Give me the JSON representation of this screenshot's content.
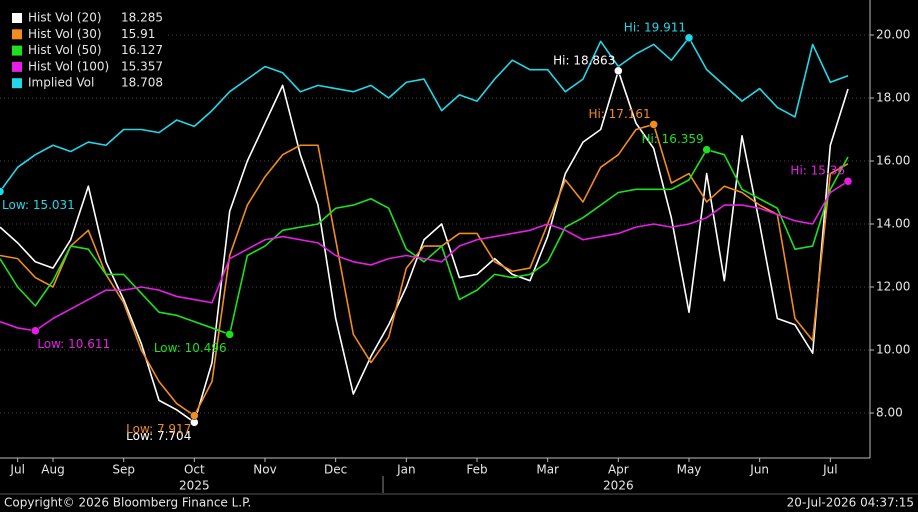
{
  "chart_data": {
    "type": "line",
    "categories": [
      null,
      "Jul",
      null,
      "Aug",
      null,
      null,
      null,
      "Sep",
      null,
      null,
      null,
      "Oct",
      null,
      null,
      null,
      "Nov",
      null,
      null,
      null,
      "Dec",
      null,
      null,
      null,
      "Jan",
      null,
      null,
      null,
      "Feb",
      null,
      null,
      null,
      "Mar",
      null,
      null,
      null,
      "Apr",
      null,
      null,
      null,
      "May",
      null,
      null,
      null,
      "Jun",
      null,
      null,
      null,
      "Jul",
      null
    ],
    "year_labels": [
      "2025",
      "2026"
    ],
    "ylim": [
      6.571,
      21.111
    ],
    "yticks": [
      {
        "value": 8,
        "label": "8.00"
      },
      {
        "value": 10,
        "label": "10.00"
      },
      {
        "value": 12,
        "label": "12.00"
      },
      {
        "value": 14,
        "label": "14.00"
      },
      {
        "value": 16,
        "label": "16.00"
      },
      {
        "value": 18,
        "label": "18.00"
      },
      {
        "value": 20,
        "label": "20.00"
      }
    ],
    "grid": true,
    "legend": "top-left",
    "series": [
      {
        "name": "Hist Vol (20)",
        "color": "#ffffff",
        "last": 18.285,
        "hi": {
          "value": 18.863,
          "label": "Hi: 18.863"
        },
        "low": {
          "value": 7.704,
          "label": "Low: 7.704"
        },
        "values": [
          13.9,
          13.4,
          12.8,
          12.6,
          13.5,
          15.2,
          12.8,
          11.6,
          10.2,
          8.4,
          8.1,
          7.704,
          9.6,
          14.4,
          16.0,
          17.2,
          18.4,
          16.2,
          14.6,
          11.0,
          8.6,
          9.8,
          10.8,
          12.0,
          13.5,
          14.0,
          12.3,
          12.4,
          12.9,
          12.4,
          12.2,
          13.6,
          15.6,
          16.6,
          17.0,
          18.863,
          17.2,
          16.4,
          14.2,
          11.2,
          15.6,
          12.2,
          16.8,
          14.0,
          11.0,
          10.8,
          9.9,
          16.5,
          18.285
        ]
      },
      {
        "name": "Hist Vol (30)",
        "color": "#f28c1e",
        "last": 15.91,
        "hi": {
          "value": 17.161,
          "label": "Hi: 17.161"
        },
        "low": {
          "value": 7.917,
          "label": "Low: 7.917"
        },
        "values": [
          13.0,
          12.9,
          12.3,
          12.0,
          13.3,
          13.8,
          12.4,
          11.5,
          10.0,
          9.0,
          8.3,
          7.917,
          9.0,
          13.0,
          14.6,
          15.5,
          16.2,
          16.5,
          16.5,
          13.5,
          10.5,
          9.6,
          10.4,
          12.6,
          13.3,
          13.3,
          13.7,
          13.7,
          12.8,
          12.5,
          12.6,
          14.0,
          15.4,
          14.7,
          15.8,
          16.2,
          17.0,
          17.161,
          15.3,
          15.6,
          14.7,
          15.2,
          15.0,
          14.6,
          14.3,
          11.0,
          10.3,
          15.6,
          15.91
        ]
      },
      {
        "name": "Hist Vol (50)",
        "color": "#1ee01e",
        "last": 16.127,
        "hi": {
          "value": 16.359,
          "label": "Hi: 16.359"
        },
        "low": {
          "value": 10.496,
          "label": "Low: 10.496"
        },
        "values": [
          12.9,
          12.0,
          11.4,
          12.2,
          13.3,
          13.2,
          12.4,
          12.4,
          11.8,
          11.2,
          11.1,
          10.9,
          10.7,
          10.496,
          13.0,
          13.3,
          13.8,
          13.9,
          14.0,
          14.5,
          14.6,
          14.8,
          14.5,
          13.2,
          12.8,
          13.3,
          11.6,
          11.9,
          12.4,
          12.3,
          12.4,
          12.8,
          13.9,
          14.2,
          14.6,
          15.0,
          15.1,
          15.1,
          15.1,
          15.4,
          16.359,
          16.2,
          15.1,
          14.8,
          14.5,
          13.2,
          13.3,
          15.1,
          16.127
        ]
      },
      {
        "name": "Hist Vol (100)",
        "color": "#e61ee6",
        "last": 15.357,
        "hi": {
          "value": 15.357,
          "label": "Hi: 15.36"
        },
        "low": {
          "value": 10.611,
          "label": "Low: 10.611"
        },
        "values": [
          10.9,
          10.7,
          10.611,
          11.0,
          11.3,
          11.6,
          11.9,
          11.9,
          12.0,
          11.9,
          11.7,
          11.6,
          11.5,
          12.9,
          13.2,
          13.5,
          13.6,
          13.5,
          13.4,
          13.0,
          12.8,
          12.7,
          12.9,
          13.0,
          12.9,
          12.8,
          13.3,
          13.5,
          13.6,
          13.7,
          13.8,
          14.0,
          13.8,
          13.5,
          13.6,
          13.7,
          13.9,
          14.0,
          13.9,
          14.0,
          14.2,
          14.6,
          14.6,
          14.5,
          14.3,
          14.1,
          14.0,
          15.0,
          15.357
        ]
      },
      {
        "name": "Implied Vol",
        "color": "#22d8e8",
        "last": 18.708,
        "hi": {
          "value": 19.911,
          "label": "Hi: 19.911"
        },
        "low": {
          "value": 15.031,
          "label": "Low: 15.031"
        },
        "values": [
          15.031,
          15.8,
          16.2,
          16.5,
          16.3,
          16.6,
          16.5,
          17.0,
          17.0,
          16.9,
          17.3,
          17.1,
          17.6,
          18.2,
          18.6,
          19.0,
          18.8,
          18.2,
          18.4,
          18.3,
          18.2,
          18.4,
          18.0,
          18.5,
          18.6,
          17.6,
          18.1,
          17.9,
          18.6,
          19.2,
          18.9,
          18.9,
          18.2,
          18.6,
          19.8,
          19.0,
          19.4,
          19.7,
          19.2,
          19.911,
          18.9,
          18.4,
          17.9,
          18.3,
          17.7,
          17.4,
          19.7,
          18.5,
          18.708
        ]
      }
    ],
    "source": "Copyright© 2026 Bloomberg Finance L.P.",
    "timestamp": "20-Jul-2026 04:37:15"
  }
}
